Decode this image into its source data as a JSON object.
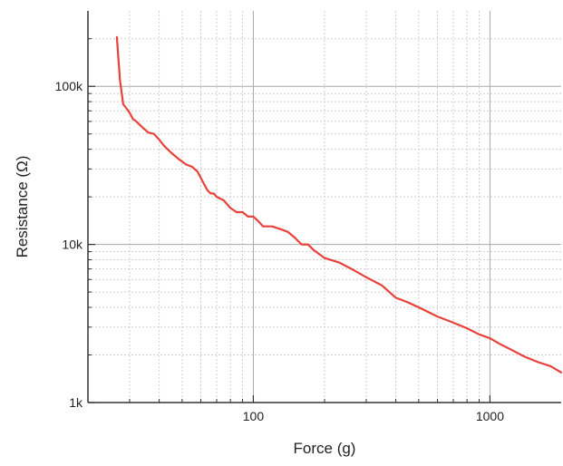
{
  "chart_data": {
    "type": "line",
    "title": "",
    "xlabel": "Force (g)",
    "ylabel": "Resistance (Ω)",
    "xscale": "log",
    "yscale": "log",
    "xlim": [
      20,
      2000
    ],
    "ylim": [
      1000,
      300000
    ],
    "grid": true,
    "x_ticks": [
      {
        "value": 100,
        "label": "100"
      },
      {
        "value": 1000,
        "label": "1000"
      }
    ],
    "y_ticks": [
      {
        "value": 1000,
        "label": "1k"
      },
      {
        "value": 10000,
        "label": "10k"
      },
      {
        "value": 100000,
        "label": "100k"
      }
    ],
    "series": [
      {
        "color": "#e8413a",
        "x": [
          26.5,
          27.3,
          28.2,
          29,
          30,
          31,
          32,
          34,
          36,
          38,
          40,
          42,
          45,
          48,
          52,
          55,
          58,
          62,
          64,
          66,
          68,
          70,
          75,
          80,
          85,
          90,
          95,
          100,
          105,
          110,
          120,
          130,
          140,
          150,
          160,
          170,
          180,
          200,
          230,
          260,
          300,
          350,
          400,
          450,
          500,
          600,
          700,
          800,
          900,
          1000,
          1100,
          1200,
          1400,
          1600,
          1800,
          2000
        ],
        "y": [
          205000,
          110000,
          77000,
          73000,
          68000,
          62000,
          60000,
          55000,
          51000,
          50000,
          46000,
          42000,
          38000,
          35000,
          32000,
          31000,
          29000,
          24000,
          22000,
          21000,
          21000,
          20000,
          19000,
          17000,
          16000,
          16000,
          15000,
          15000,
          14000,
          13000,
          13000,
          12500,
          12000,
          11000,
          10000,
          10000,
          9200,
          8200,
          7700,
          7000,
          6200,
          5500,
          4600,
          4300,
          4000,
          3500,
          3200,
          2950,
          2700,
          2550,
          2350,
          2200,
          1950,
          1800,
          1700,
          1550
        ]
      }
    ]
  }
}
